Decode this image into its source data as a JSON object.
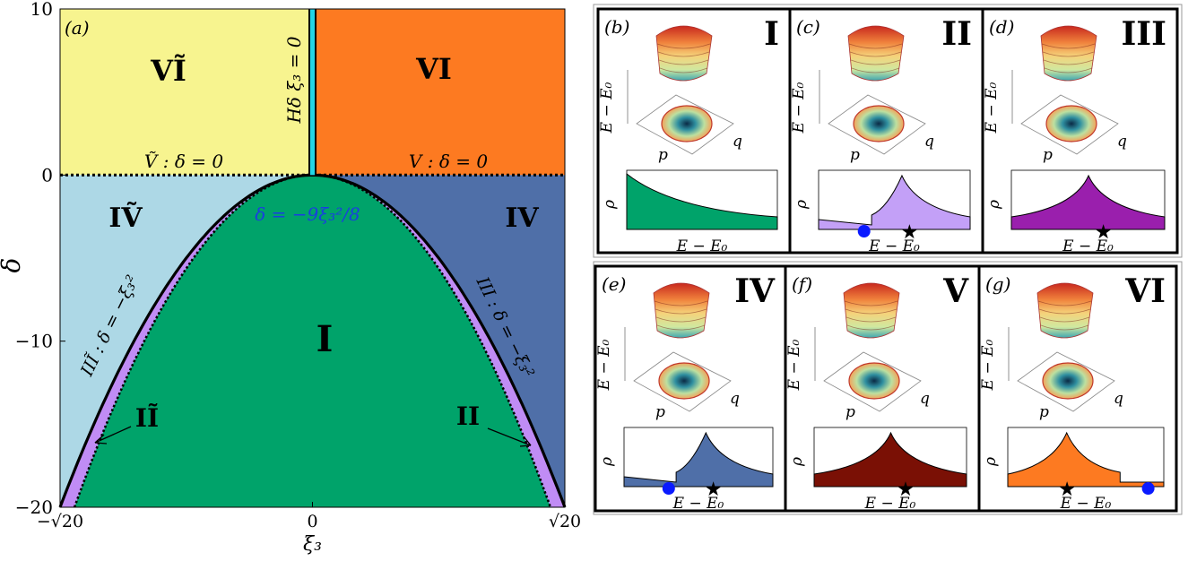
{
  "panel_a": {
    "label": "(a)",
    "regions": {
      "r1": "I",
      "r4": "IV",
      "r4t": "IṼ",
      "r6": "VI",
      "r6t": "VĨ"
    },
    "lines": {
      "v_line": "V : δ = 0",
      "vt_line": "Ṽ : δ = 0",
      "h_line": "Hδ   ξ₃ = 0",
      "parabola": "δ = −9ξ₃²/8",
      "iii_line": "III : δ = −ξ₃²",
      "iiit_line": "IIĨ : δ = −ξ₃²",
      "ii": "II",
      "iit": "IĨ"
    },
    "colors": {
      "I": "#00a36a",
      "IV": "#4f6fa8",
      "IVt": "#add8e6",
      "VI": "#fd7a21",
      "VIt": "#f7f48f",
      "II": "#c08cf5",
      "H": "#22d6e6",
      "blue_text": "#1a3ee0"
    },
    "chart_data": {
      "type": "phase-diagram",
      "xlabel": "ξ₃",
      "ylabel": "δ",
      "xlim": [
        -4.472,
        4.472
      ],
      "ylim": [
        -20,
        10
      ],
      "xticks": [
        "−√20",
        "0",
        "√20"
      ],
      "yticks": [
        "10",
        "0",
        "−10",
        "−20"
      ],
      "boundaries": [
        "δ = 0",
        "δ = −ξ₃²",
        "δ = −9ξ₃²/8",
        "ξ₃ = 0"
      ]
    }
  },
  "subpanels": [
    {
      "label": "(b)",
      "roman": "I",
      "fill": "#00a36a",
      "cusp": false,
      "step": "none",
      "dot": false,
      "star": false
    },
    {
      "label": "(c)",
      "roman": "II",
      "fill": "#c3a0f7",
      "cusp": true,
      "step": "left",
      "dot": true,
      "star": true
    },
    {
      "label": "(d)",
      "roman": "III",
      "fill": "#9a1fad",
      "cusp": true,
      "step": "none",
      "dot": false,
      "star": true
    },
    {
      "label": "(e)",
      "roman": "IV",
      "fill": "#4f6fa8",
      "cusp": true,
      "step": "left",
      "dot": true,
      "star": true
    },
    {
      "label": "(f)",
      "roman": "V",
      "fill": "#7a1005",
      "cusp": true,
      "step": "none",
      "dot": false,
      "star": true
    },
    {
      "label": "(g)",
      "roman": "VI",
      "fill": "#fd7a21",
      "cusp": true,
      "step": "right",
      "dot": true,
      "star": true
    }
  ],
  "axis_text": {
    "energy": "E − E₀",
    "rho": "ρ",
    "p": "p",
    "q": "q"
  }
}
